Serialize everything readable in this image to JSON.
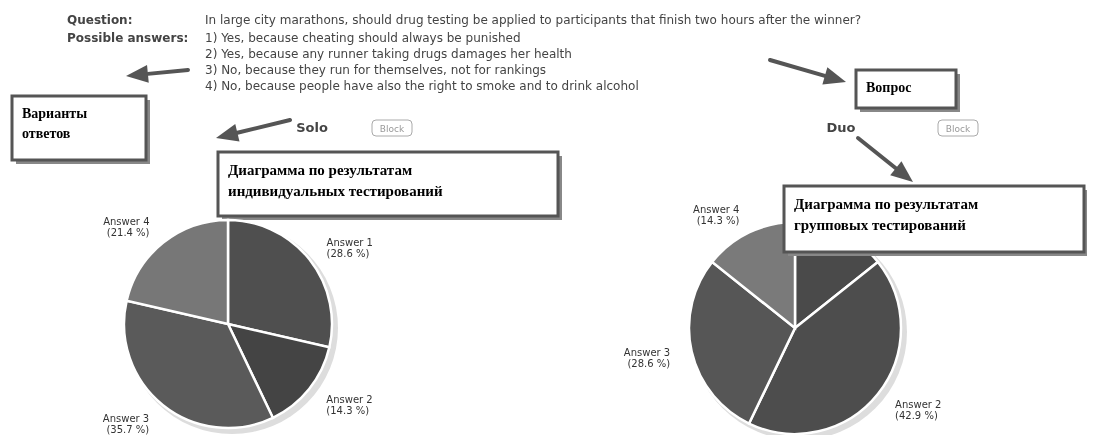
{
  "chart_data": [
    {
      "type": "pie",
      "title": "Solo",
      "categories": [
        "Answer 1",
        "Answer 2",
        "Answer 3",
        "Answer 4"
      ],
      "values": [
        28.6,
        14.3,
        35.7,
        21.4
      ],
      "colors": [
        "#4f4f4f",
        "#444444",
        "#5a5a5a",
        "#777777"
      ],
      "value_labels": [
        "(28.6 %)",
        "(14.3 %)",
        "(35.7 %)",
        "(21.4 %)"
      ],
      "annotations": [
        "Question:",
        "In large city marathons, should drug testing be applied to participants that finish two hours after the winner?",
        "Possible answers:",
        "1) Yes, because cheating should always be punished",
        "2) Yes, because any runner taking drugs damages her health",
        "3) No, because they run for themselves, not for rankings",
        "4) No, because people have also the right to smoke and to drink alcohol",
        "Block",
        "Варианты ответов",
        "Диаграмма по результатам индивидуальных тестирований",
        "Вопрос"
      ]
    },
    {
      "type": "pie",
      "title": "Duo",
      "categories": [
        null,
        "Answer 2",
        "Answer 3",
        "Answer 4"
      ],
      "values": [
        14.3,
        42.9,
        28.6,
        14.3
      ],
      "colors": [
        "#4a4a4a",
        "#4d4d4d",
        "#565656",
        "#7a7a7a"
      ],
      "value_labels": [
        null,
        "(42.9 %)",
        "(28.6 %)",
        "(14.3 %)"
      ],
      "annotations": [
        "Block",
        "Диаграмма по результатам групповых тестирований"
      ]
    }
  ]
}
